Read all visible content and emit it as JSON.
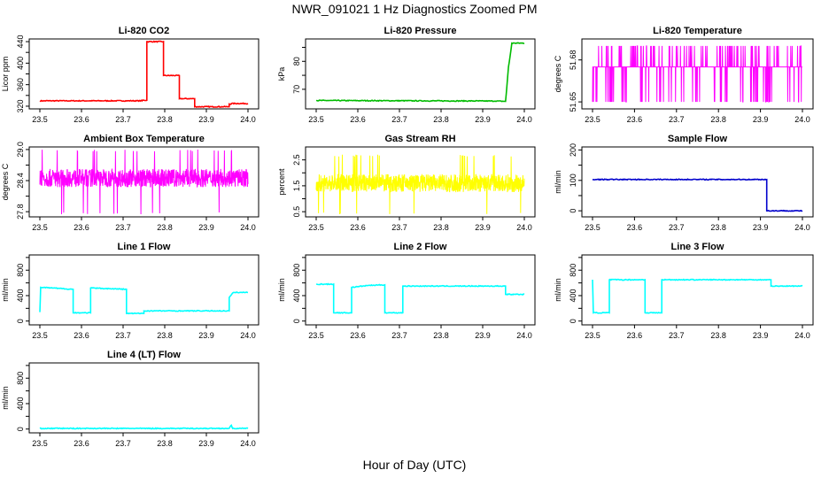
{
  "figure": {
    "title": "NWR_091021  1 Hz Diagnostics Zoomed PM",
    "xlabel": "Hour of Day (UTC)"
  },
  "chart_data": [
    {
      "type": "line",
      "title": "Li-820 CO2",
      "ylabel": "Licor ppm",
      "color": "#ff0000",
      "xlim": [
        23.5,
        24.0
      ],
      "ylim": [
        315,
        445
      ],
      "xticks": [
        "23.5",
        "23.6",
        "23.7",
        "23.8",
        "23.9",
        "24.0"
      ],
      "yticks": [
        320,
        340,
        360,
        380,
        400,
        420,
        440
      ],
      "ytick_labels": [
        "320",
        "",
        "360",
        "",
        "400",
        "",
        "440"
      ],
      "kind": "step",
      "points": [
        [
          23.5,
          330
        ],
        [
          23.745,
          330
        ],
        [
          23.745,
          331
        ],
        [
          23.757,
          331
        ],
        [
          23.757,
          440
        ],
        [
          23.797,
          440
        ],
        [
          23.797,
          377
        ],
        [
          23.835,
          377
        ],
        [
          23.835,
          334
        ],
        [
          23.872,
          334
        ],
        [
          23.872,
          319
        ],
        [
          23.955,
          319
        ],
        [
          23.955,
          324
        ],
        [
          23.96,
          324
        ],
        [
          23.96,
          325
        ],
        [
          24.0,
          325
        ]
      ]
    },
    {
      "type": "line",
      "title": "Li-820 Pressure",
      "ylabel": "kPa",
      "color": "#00bb00",
      "xlim": [
        23.5,
        24.0
      ],
      "ylim": [
        63,
        88
      ],
      "xticks": [
        "23.5",
        "23.6",
        "23.7",
        "23.8",
        "23.9",
        "24.0"
      ],
      "yticks": [
        70,
        75,
        80,
        85
      ],
      "ytick_labels": [
        "70",
        "",
        "80",
        ""
      ],
      "kind": "step",
      "points": [
        [
          23.5,
          66.0
        ],
        [
          23.93,
          65.8
        ],
        [
          23.955,
          65.7
        ],
        [
          23.958,
          71
        ],
        [
          23.962,
          78
        ],
        [
          23.966,
          82
        ],
        [
          23.97,
          86.5
        ],
        [
          24.0,
          86.5
        ]
      ]
    },
    {
      "type": "line",
      "title": "Li-820 Temperature",
      "ylabel": "degrees C",
      "color": "#ff00ff",
      "xlim": [
        23.5,
        24.0
      ],
      "ylim": [
        51.645,
        51.695
      ],
      "xticks": [
        "23.5",
        "23.6",
        "23.7",
        "23.8",
        "23.9",
        "24.0"
      ],
      "yticks": [
        51.65,
        51.68
      ],
      "ytick_labels": [
        "51.65",
        "51.68"
      ],
      "kind": "noise",
      "base": 51.675,
      "spread": 0.0,
      "spike_up": 51.69,
      "spike_down": 51.65,
      "spike_rate": 0.1
    },
    {
      "type": "line",
      "title": "Ambient Box Temperature",
      "ylabel": "degrees C",
      "color": "#ff00ff",
      "xlim": [
        23.5,
        24.0
      ],
      "ylim": [
        27.7,
        29.05
      ],
      "xticks": [
        "23.5",
        "23.6",
        "23.7",
        "23.8",
        "23.9",
        "24.0"
      ],
      "yticks": [
        27.8,
        28.1,
        28.4,
        28.7,
        29.0
      ],
      "ytick_labels": [
        "27.8",
        "",
        "28.4",
        "",
        "29.0"
      ],
      "kind": "noise",
      "base": 28.45,
      "spread": 0.35,
      "spike_up": 29.0,
      "spike_down": 27.75,
      "spike_rate": 0.02
    },
    {
      "type": "line",
      "title": "Gas Stream RH",
      "ylabel": "percent",
      "color": "#ffff00",
      "xlim": [
        23.5,
        24.0
      ],
      "ylim": [
        0.3,
        3.0
      ],
      "xticks": [
        "23.5",
        "23.6",
        "23.7",
        "23.8",
        "23.9",
        "24.0"
      ],
      "yticks": [
        0.5,
        1.0,
        1.5,
        2.0,
        2.5
      ],
      "ytick_labels": [
        "0.5",
        "",
        "1.5",
        "",
        "2.5"
      ],
      "kind": "noise",
      "base": 1.6,
      "spread": 0.7,
      "spike_up": 2.7,
      "spike_down": 0.4,
      "spike_rate": 0.02
    },
    {
      "type": "line",
      "title": "Sample Flow",
      "ylabel": "ml/min",
      "color": "#0000cc",
      "xlim": [
        23.5,
        24.0
      ],
      "ylim": [
        -20,
        210
      ],
      "xticks": [
        "23.5",
        "23.6",
        "23.7",
        "23.8",
        "23.9",
        "24.0"
      ],
      "yticks": [
        0,
        50,
        100,
        150,
        200
      ],
      "ytick_labels": [
        "0",
        "",
        "100",
        "",
        "200"
      ],
      "kind": "step",
      "points": [
        [
          23.5,
          103
        ],
        [
          23.915,
          103
        ],
        [
          23.915,
          0
        ],
        [
          24.0,
          0
        ]
      ]
    },
    {
      "type": "line",
      "title": "Line 1 Flow",
      "ylabel": "ml/min",
      "color": "#00ffff",
      "xlim": [
        23.5,
        24.0
      ],
      "ylim": [
        -60,
        1040
      ],
      "xticks": [
        "23.5",
        "23.6",
        "23.7",
        "23.8",
        "23.9",
        "24.0"
      ],
      "yticks": [
        0,
        200,
        400,
        600,
        800,
        1000
      ],
      "ytick_labels": [
        "0",
        "",
        "400",
        "",
        "800",
        ""
      ],
      "kind": "step",
      "points": [
        [
          23.5,
          140
        ],
        [
          23.502,
          530
        ],
        [
          23.58,
          500
        ],
        [
          23.58,
          130
        ],
        [
          23.622,
          130
        ],
        [
          23.622,
          520
        ],
        [
          23.708,
          500
        ],
        [
          23.708,
          120
        ],
        [
          23.75,
          120
        ],
        [
          23.75,
          160
        ],
        [
          23.955,
          160
        ],
        [
          23.955,
          370
        ],
        [
          23.965,
          450
        ],
        [
          24.0,
          450
        ]
      ]
    },
    {
      "type": "line",
      "title": "Line 2 Flow",
      "ylabel": "ml/min",
      "color": "#00ffff",
      "xlim": [
        23.5,
        24.0
      ],
      "ylim": [
        -60,
        1040
      ],
      "xticks": [
        "23.5",
        "23.6",
        "23.7",
        "23.8",
        "23.9",
        "24.0"
      ],
      "yticks": [
        0,
        200,
        400,
        600,
        800,
        1000
      ],
      "ytick_labels": [
        "0",
        "",
        "400",
        "",
        "800",
        ""
      ],
      "kind": "step",
      "points": [
        [
          23.5,
          580
        ],
        [
          23.542,
          580
        ],
        [
          23.542,
          130
        ],
        [
          23.585,
          130
        ],
        [
          23.585,
          530
        ],
        [
          23.625,
          560
        ],
        [
          23.665,
          570
        ],
        [
          23.665,
          130
        ],
        [
          23.708,
          130
        ],
        [
          23.708,
          550
        ],
        [
          23.955,
          550
        ],
        [
          23.955,
          420
        ],
        [
          24.0,
          420
        ]
      ]
    },
    {
      "type": "line",
      "title": "Line 3 Flow",
      "ylabel": "ml/min",
      "color": "#00ffff",
      "xlim": [
        23.5,
        24.0
      ],
      "ylim": [
        -60,
        1040
      ],
      "xticks": [
        "23.5",
        "23.6",
        "23.7",
        "23.8",
        "23.9",
        "24.0"
      ],
      "yticks": [
        0,
        200,
        400,
        600,
        800,
        1000
      ],
      "ytick_labels": [
        "0",
        "",
        "400",
        "",
        "800",
        ""
      ],
      "kind": "step",
      "points": [
        [
          23.5,
          650
        ],
        [
          23.502,
          130
        ],
        [
          23.54,
          130
        ],
        [
          23.54,
          650
        ],
        [
          23.625,
          650
        ],
        [
          23.625,
          130
        ],
        [
          23.665,
          130
        ],
        [
          23.665,
          650
        ],
        [
          23.925,
          650
        ],
        [
          23.925,
          550
        ],
        [
          24.0,
          550
        ]
      ]
    },
    {
      "type": "line",
      "title": "Line 4 (LT) Flow",
      "ylabel": "ml/min",
      "color": "#00ffff",
      "xlim": [
        23.5,
        24.0
      ],
      "ylim": [
        -60,
        1040
      ],
      "xticks": [
        "23.5",
        "23.6",
        "23.7",
        "23.8",
        "23.9",
        "24.0"
      ],
      "yticks": [
        0,
        200,
        400,
        600,
        800,
        1000
      ],
      "ytick_labels": [
        "0",
        "",
        "400",
        "",
        "800",
        ""
      ],
      "kind": "step",
      "points": [
        [
          23.5,
          10
        ],
        [
          23.955,
          10
        ],
        [
          23.96,
          60
        ],
        [
          23.963,
          10
        ],
        [
          24.0,
          10
        ]
      ]
    }
  ]
}
